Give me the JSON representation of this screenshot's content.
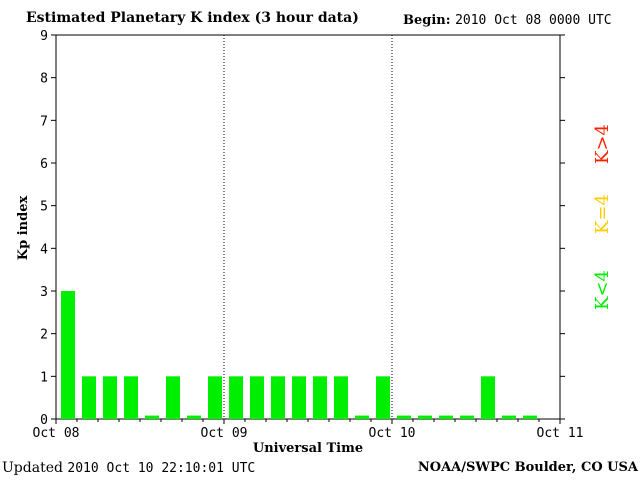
{
  "header": {
    "title": "Estimated Planetary K index (3 hour data)",
    "begin_label": "Begin:",
    "begin_value": "2010 Oct 08 0000 UTC"
  },
  "footer": {
    "updated_label": "Updated",
    "updated_value": "2010 Oct 10 22:10:01 UTC",
    "source": "NOAA/SWPC Boulder, CO USA"
  },
  "legend": [
    {
      "label": "K<4",
      "color": "#00ee00"
    },
    {
      "label": "K=4",
      "color": "#ffcc00"
    },
    {
      "label": "K>4",
      "color": "#ff2200"
    }
  ],
  "chart_data": {
    "type": "bar",
    "title": "Estimated Planetary K index (3 hour data)",
    "xlabel": "Universal Time",
    "ylabel": "Kp index",
    "ylim": [
      0,
      9
    ],
    "yticks": [
      0,
      1,
      2,
      3,
      4,
      5,
      6,
      7,
      8,
      9
    ],
    "x_tick_labels": [
      "Oct 08",
      "Oct 09",
      "Oct 10",
      "Oct 11"
    ],
    "bar_interval_hours": 3,
    "values": [
      3,
      1,
      1,
      1,
      0,
      1,
      0,
      1,
      1,
      1,
      1,
      1,
      1,
      1,
      0,
      1,
      0,
      0,
      0,
      0,
      1,
      0,
      0
    ],
    "bar_color": "#00ee00",
    "day_separators": "dotted"
  }
}
